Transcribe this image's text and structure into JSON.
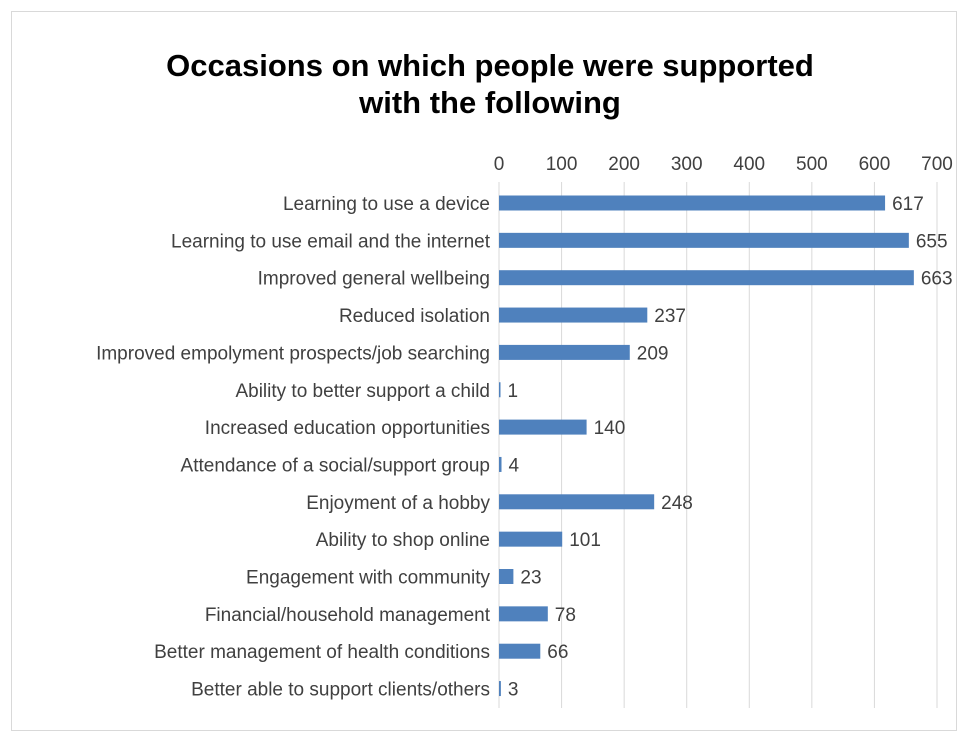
{
  "chart_data": {
    "type": "bar",
    "orientation": "horizontal",
    "title_lines": [
      "Occasions on which people were supported",
      "with the following"
    ],
    "categories": [
      "Learning to use a device",
      "Learning to use email and the internet",
      "Improved general wellbeing",
      "Reduced isolation",
      "Improved empolyment prospects/job searching",
      "Ability to better support a child",
      "Increased education opportunities",
      "Attendance of a social/support group",
      "Enjoyment of a hobby",
      "Ability to shop online",
      "Engagement with community",
      "Financial/household management",
      "Better management of health conditions",
      "Better able to support clients/others"
    ],
    "values": [
      617,
      655,
      663,
      237,
      209,
      1,
      140,
      4,
      248,
      101,
      23,
      78,
      66,
      3
    ],
    "xlim": [
      0,
      700
    ],
    "xticks": [
      0,
      100,
      200,
      300,
      400,
      500,
      600,
      700
    ],
    "x_axis_position": "top",
    "grid": true,
    "data_labels": true,
    "bar_color": "#4f81bd",
    "grid_color": "#d9d9d9"
  }
}
